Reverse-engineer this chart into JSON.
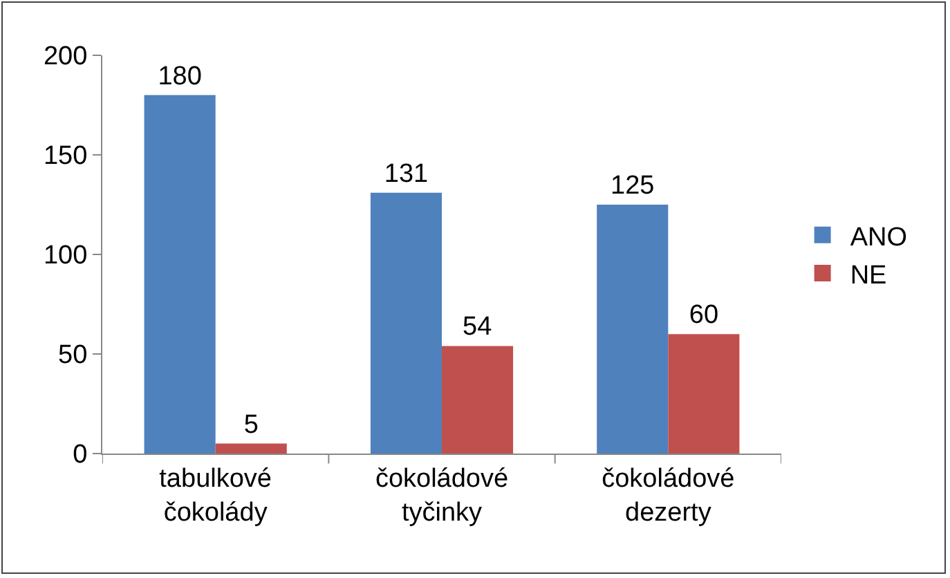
{
  "chart_data": {
    "type": "bar",
    "categories": [
      "tabulkové čokolády",
      "čokoládové tyčinky",
      "čokoládové dezerty"
    ],
    "series": [
      {
        "name": "ANO",
        "color": "#4f81bd",
        "values": [
          180,
          131,
          125
        ]
      },
      {
        "name": "NE",
        "color": "#c0504d",
        "values": [
          5,
          54,
          60
        ]
      }
    ],
    "ylim": [
      0,
      200
    ],
    "yticks": [
      0,
      50,
      100,
      150,
      200
    ],
    "grid": false,
    "legend": "right",
    "data_labels": true
  }
}
